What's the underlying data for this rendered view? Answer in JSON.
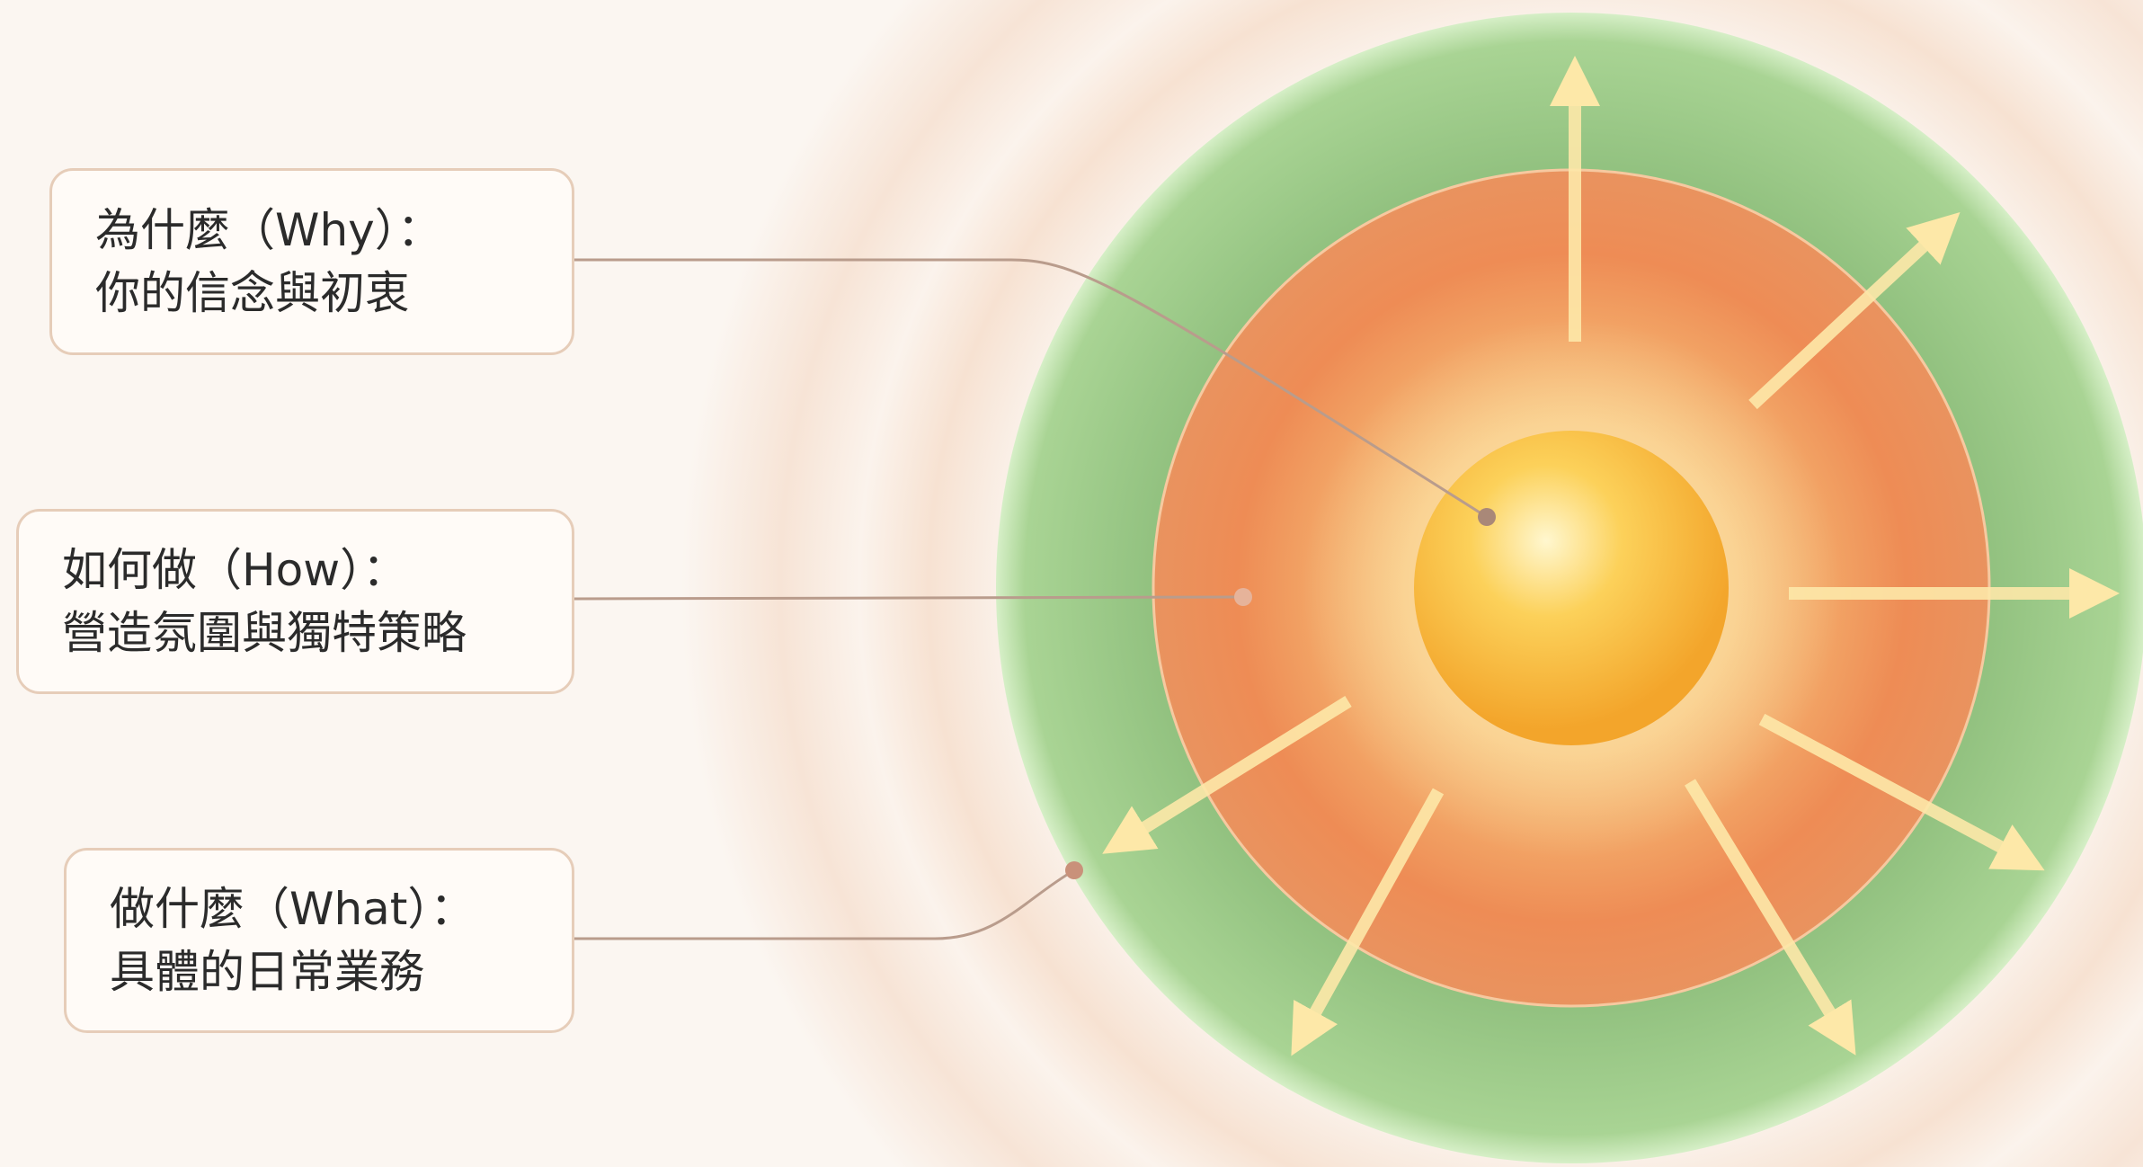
{
  "items": [
    {
      "title": "為什麼（Why）：",
      "desc": "你的信念與初衷"
    },
    {
      "title": "如何做（How）：",
      "desc": "營造氛圍與獨特策略"
    },
    {
      "title": "做什麼（What）：",
      "desc": "具體的日常業務"
    }
  ]
}
